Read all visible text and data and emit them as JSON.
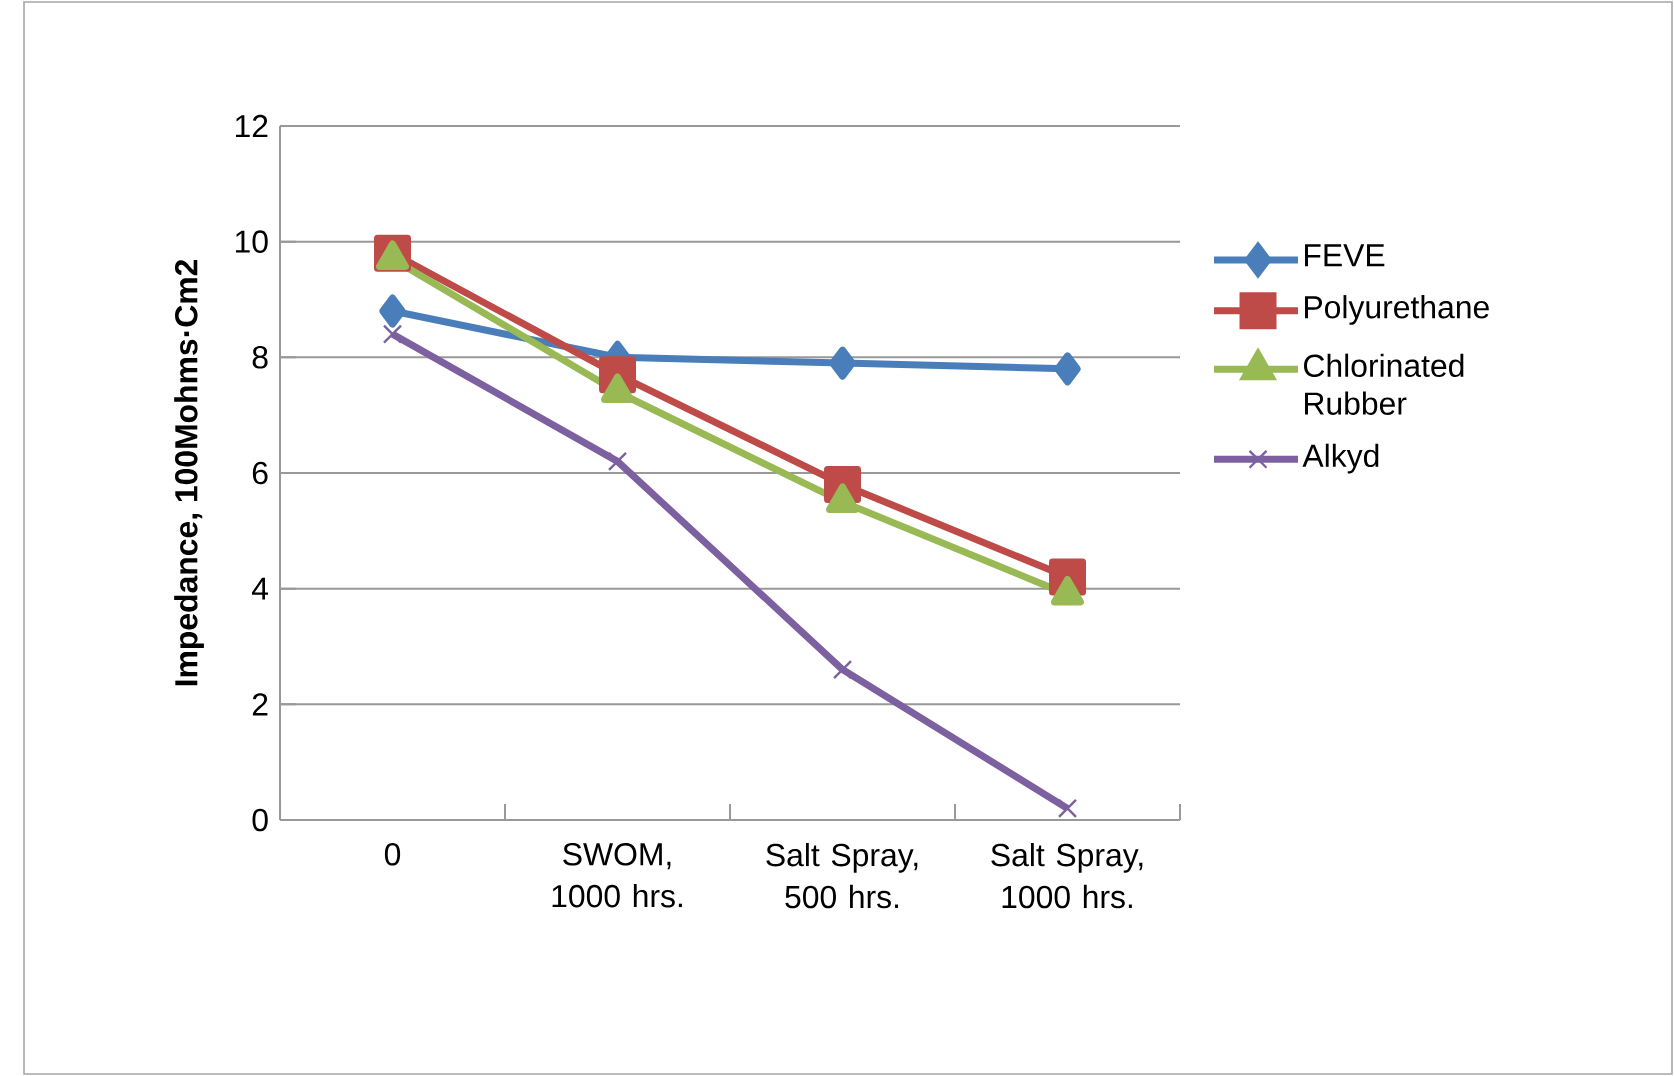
{
  "chart_data": {
    "type": "line",
    "ylabel": "Impedance, 100Mohms·Cm2",
    "categories": [
      "0",
      "SWOM, 1000 hrs.",
      "Salt Spray, 500 hrs.",
      "Salt Spray, 1000 hrs."
    ],
    "series": [
      {
        "name": "FEVE",
        "color": "#4a7ebb",
        "marker": "diamond",
        "values": [
          8.8,
          8.0,
          7.9,
          7.8
        ]
      },
      {
        "name": "Polyurethane",
        "color": "#be4b48",
        "marker": "square",
        "values": [
          9.8,
          7.7,
          5.8,
          4.2
        ]
      },
      {
        "name": "Chlorinated Rubber",
        "color": "#98b954",
        "marker": "triangle",
        "values": [
          9.7,
          7.4,
          5.5,
          3.9
        ]
      },
      {
        "name": "Alkyd",
        "color": "#7d60a0",
        "marker": "cross",
        "values": [
          8.4,
          6.2,
          2.6,
          0.2
        ]
      }
    ],
    "ylim": [
      0,
      12
    ],
    "yticks": [
      0,
      2,
      4,
      6,
      8,
      10,
      12
    ],
    "grid": "y",
    "legend": "right",
    "line_style": "solid"
  }
}
